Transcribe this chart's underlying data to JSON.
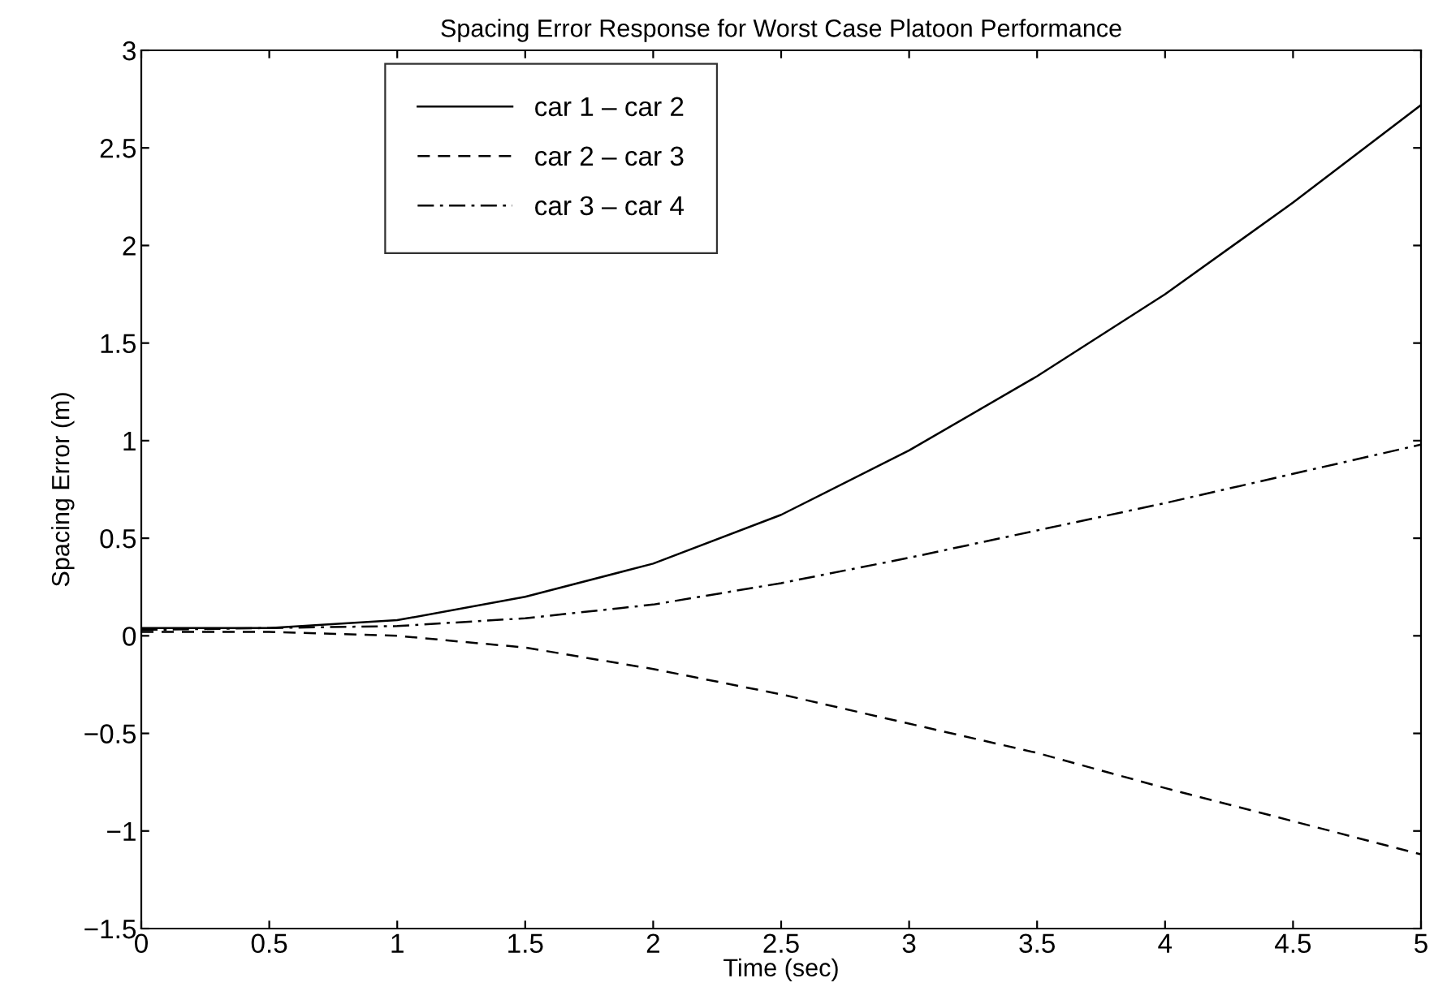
{
  "chart_data": {
    "type": "line",
    "title": "Spacing Error Response for Worst Case Platoon Performance",
    "xlabel": "Time (sec)",
    "ylabel": "Spacing Error (m)",
    "x": [
      0,
      0.5,
      1,
      1.5,
      2,
      2.5,
      3,
      3.5,
      4,
      4.5,
      5
    ],
    "series": [
      {
        "name": "car 1 – car 2",
        "color": "#000000",
        "line_style": "solid",
        "values": [
          0.04,
          0.04,
          0.08,
          0.2,
          0.37,
          0.62,
          0.95,
          1.33,
          1.75,
          2.22,
          2.72
        ]
      },
      {
        "name": "car 2 – car 3",
        "color": "#000000",
        "line_style": "dashed",
        "values": [
          0.02,
          0.02,
          0.0,
          -0.06,
          -0.17,
          -0.3,
          -0.45,
          -0.6,
          -0.78,
          -0.95,
          -1.12
        ]
      },
      {
        "name": "car 3 – car 4",
        "color": "#000000",
        "line_style": "dashdot",
        "values": [
          0.03,
          0.04,
          0.05,
          0.09,
          0.16,
          0.27,
          0.4,
          0.54,
          0.68,
          0.83,
          0.98
        ]
      }
    ],
    "xlim": [
      0,
      5
    ],
    "xticks": [
      0,
      0.5,
      1,
      1.5,
      2,
      2.5,
      3,
      3.5,
      4,
      4.5,
      5
    ],
    "ylim": [
      -1.5,
      3
    ],
    "yticks": [
      {
        "value": -1.5,
        "label": "−1.5"
      },
      {
        "value": -1,
        "label": "−1"
      },
      {
        "value": -0.5,
        "label": "−0.5"
      },
      0,
      0.5,
      1,
      1.5,
      2,
      2.5,
      3
    ],
    "legend": "top left",
    "grid": false
  }
}
